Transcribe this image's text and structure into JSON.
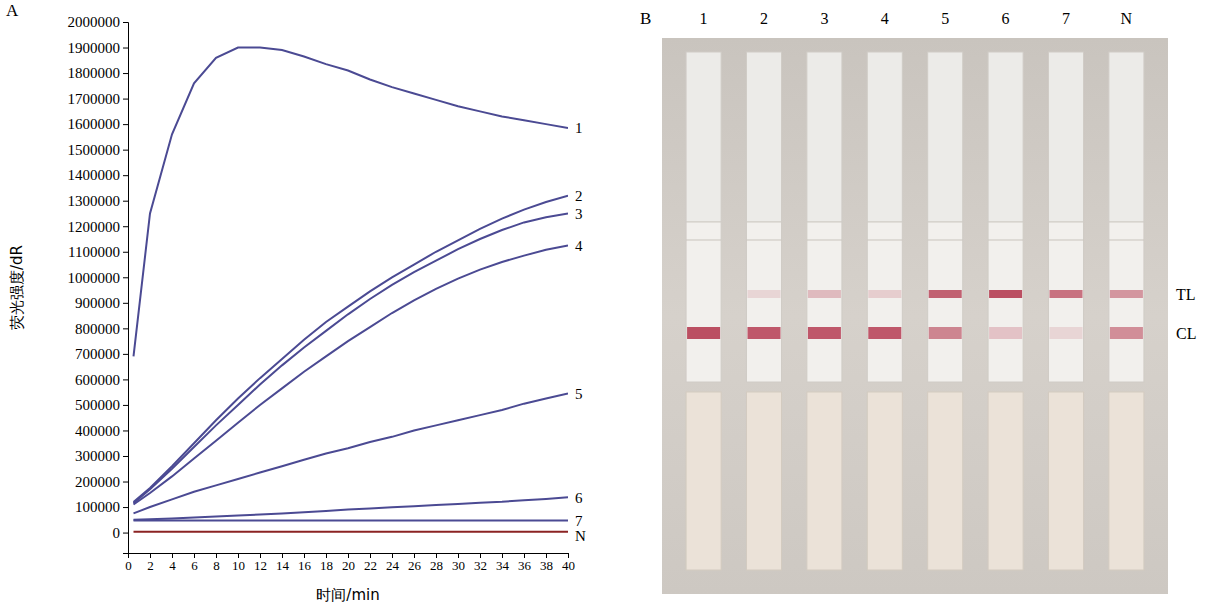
{
  "chart_data": {
    "type": "line",
    "panel_label": "A",
    "x_label": "时间/min",
    "y_label": "荧光强度/dR",
    "x": [
      0.5,
      2,
      4,
      6,
      8,
      10,
      12,
      14,
      16,
      18,
      20,
      22,
      24,
      26,
      28,
      30,
      32,
      34,
      36,
      38,
      40
    ],
    "xlim": [
      0,
      40
    ],
    "xticks": [
      0,
      2,
      4,
      6,
      8,
      10,
      12,
      14,
      16,
      18,
      20,
      22,
      24,
      26,
      28,
      30,
      32,
      34,
      36,
      38,
      40
    ],
    "ylim": [
      -80000,
      2000000
    ],
    "yticks": [
      0,
      100000,
      200000,
      300000,
      400000,
      500000,
      600000,
      700000,
      800000,
      900000,
      1000000,
      1100000,
      1200000,
      1300000,
      1400000,
      1500000,
      1600000,
      1700000,
      1800000,
      1900000,
      2000000
    ],
    "grid": false,
    "series": [
      {
        "name": "1",
        "color": "#4b4a93",
        "values": [
          690000,
          1250000,
          1560000,
          1760000,
          1860000,
          1900000,
          1900000,
          1890000,
          1865000,
          1835000,
          1810000,
          1775000,
          1745000,
          1720000,
          1695000,
          1670000,
          1650000,
          1630000,
          1615000,
          1600000,
          1585000
        ]
      },
      {
        "name": "2",
        "color": "#4b4a93",
        "values": [
          120000,
          175000,
          260000,
          350000,
          440000,
          525000,
          605000,
          680000,
          755000,
          825000,
          885000,
          945000,
          1000000,
          1050000,
          1100000,
          1145000,
          1190000,
          1230000,
          1265000,
          1295000,
          1320000
        ]
      },
      {
        "name": "3",
        "color": "#4b4a93",
        "values": [
          115000,
          170000,
          250000,
          335000,
          420000,
          500000,
          580000,
          655000,
          725000,
          790000,
          855000,
          915000,
          970000,
          1020000,
          1065000,
          1110000,
          1150000,
          1185000,
          1215000,
          1235000,
          1250000
        ]
      },
      {
        "name": "4",
        "color": "#4b4a93",
        "values": [
          110000,
          155000,
          220000,
          290000,
          360000,
          430000,
          500000,
          565000,
          630000,
          690000,
          750000,
          805000,
          860000,
          910000,
          955000,
          995000,
          1030000,
          1060000,
          1085000,
          1108000,
          1125000
        ]
      },
      {
        "name": "5",
        "color": "#4b4a93",
        "values": [
          75000,
          100000,
          130000,
          160000,
          185000,
          210000,
          235000,
          260000,
          285000,
          310000,
          330000,
          355000,
          375000,
          400000,
          420000,
          440000,
          460000,
          480000,
          505000,
          525000,
          545000
        ]
      },
      {
        "name": "6",
        "color": "#4b4a93",
        "values": [
          50000,
          52000,
          55000,
          59000,
          63000,
          67000,
          71000,
          75000,
          80000,
          85000,
          90000,
          94000,
          99000,
          103000,
          108000,
          112000,
          117000,
          121000,
          127000,
          132000,
          138000
        ]
      },
      {
        "name": "7",
        "color": "#4b4a93",
        "values": [
          47000,
          47000,
          47000,
          47000,
          47000,
          47000,
          47000,
          47000,
          47000,
          47000,
          47000,
          47000,
          47000,
          47000,
          47000,
          47000,
          47000,
          47000,
          47000,
          47000,
          47000
        ]
      },
      {
        "name": "N",
        "color": "#8b2323",
        "values": [
          3000,
          3000,
          3000,
          3000,
          3000,
          3000,
          3000,
          3000,
          3000,
          3000,
          3000,
          3000,
          3000,
          3000,
          3000,
          3000,
          3000,
          3000,
          3000,
          3000,
          3000
        ]
      }
    ]
  },
  "strip_photo": {
    "panel_label": "B",
    "lanes": [
      "1",
      "2",
      "3",
      "4",
      "5",
      "6",
      "7",
      "N"
    ],
    "test_line_label": "TL",
    "control_line_label": "CL",
    "test_line_intensity": [
      0,
      0.15,
      0.3,
      0.2,
      0.8,
      0.9,
      0.7,
      0.5
    ],
    "control_line_intensity": [
      0.9,
      0.85,
      0.85,
      0.85,
      0.6,
      0.25,
      0.15,
      0.55
    ]
  }
}
